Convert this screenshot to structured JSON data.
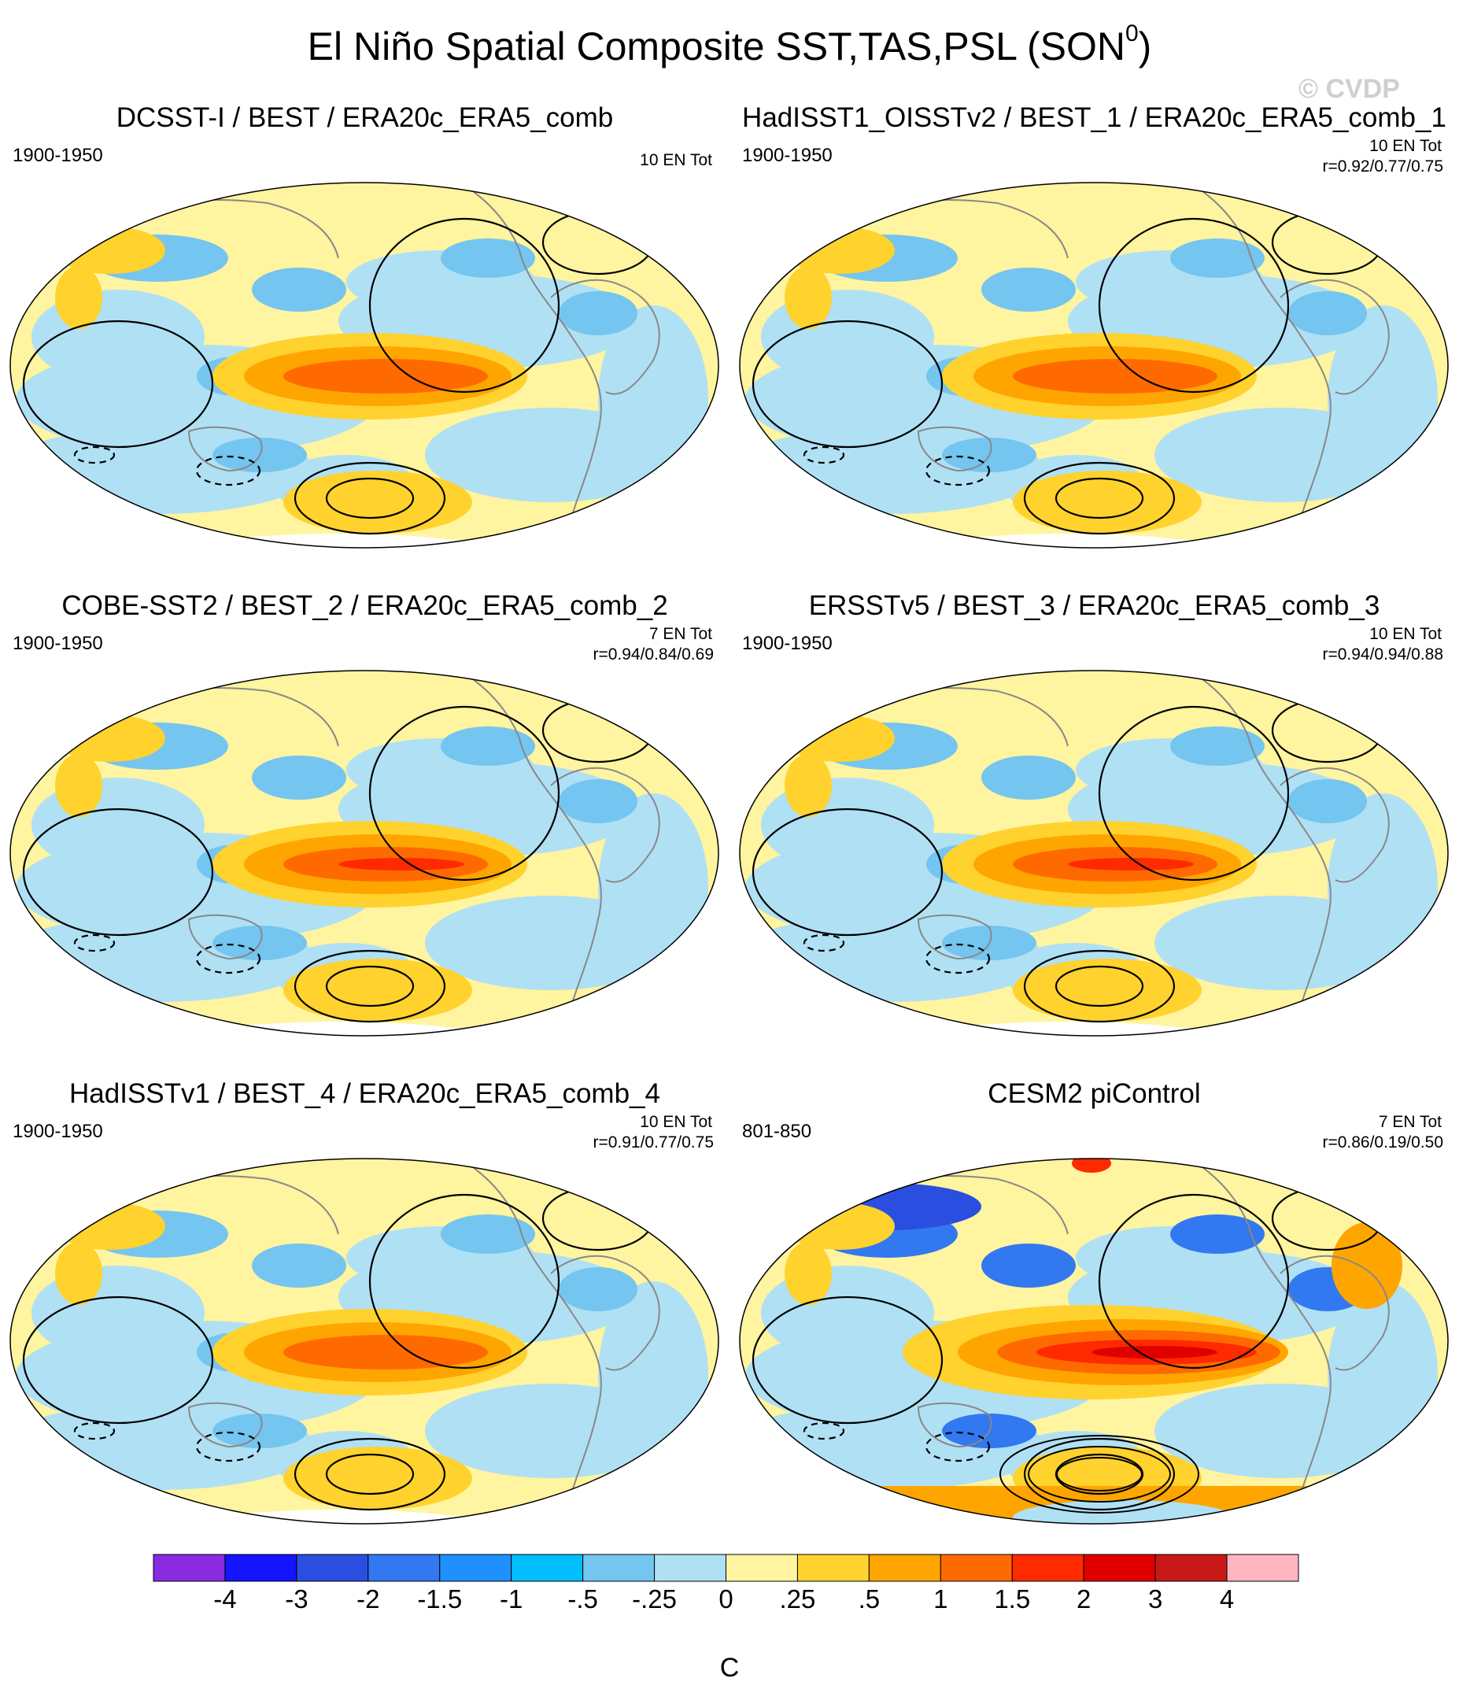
{
  "title": {
    "main": "El Niño Spatial Composite SST,TAS,PSL (SON",
    "sup": "0",
    "close": ")"
  },
  "watermark": "© CVDP",
  "panels": [
    {
      "title": "DCSST-I / BEST / ERA20c_ERA5_comb",
      "period": "1900-1950",
      "en": "10 EN Tot",
      "r": "",
      "variant": 0
    },
    {
      "title": "HadISST1_OISSTv2 / BEST_1 / ERA20c_ERA5_comb_1",
      "period": "1900-1950",
      "en": "10 EN Tot",
      "r": "r=0.92/0.77/0.75",
      "variant": 1
    },
    {
      "title": "COBE-SST2 / BEST_2 / ERA20c_ERA5_comb_2",
      "period": "1900-1950",
      "en": "7 EN Tot",
      "r": "r=0.94/0.84/0.69",
      "variant": 2
    },
    {
      "title": "ERSSTv5 / BEST_3 / ERA20c_ERA5_comb_3",
      "period": "1900-1950",
      "en": "10 EN Tot",
      "r": "r=0.94/0.94/0.88",
      "variant": 3
    },
    {
      "title": "HadISSTv1 / BEST_4 / ERA20c_ERA5_comb_4",
      "period": "1900-1950",
      "en": "10 EN Tot",
      "r": "r=0.91/0.77/0.75",
      "variant": 4
    },
    {
      "title": "CESM2 piControl",
      "period": "801-850",
      "en": "7 EN Tot",
      "r": "r=0.86/0.19/0.50",
      "variant": 5
    }
  ],
  "colorbar": {
    "colors": [
      "#8a2be2",
      "#1414ff",
      "#2a4fe0",
      "#3278f0",
      "#1e90ff",
      "#00bfff",
      "#74c5f0",
      "#b0e0f4",
      "#fff4a0",
      "#ffd22e",
      "#ffa500",
      "#ff6a00",
      "#ff2a00",
      "#e00000",
      "#c81818",
      "#ffb6c1"
    ],
    "labels": [
      "-4",
      "-3",
      "-2",
      "-1.5",
      "-1",
      "-.5",
      "-.25",
      "0",
      ".25",
      ".5",
      "1",
      "1.5",
      "2",
      "3",
      "4"
    ],
    "unit": "C"
  }
}
